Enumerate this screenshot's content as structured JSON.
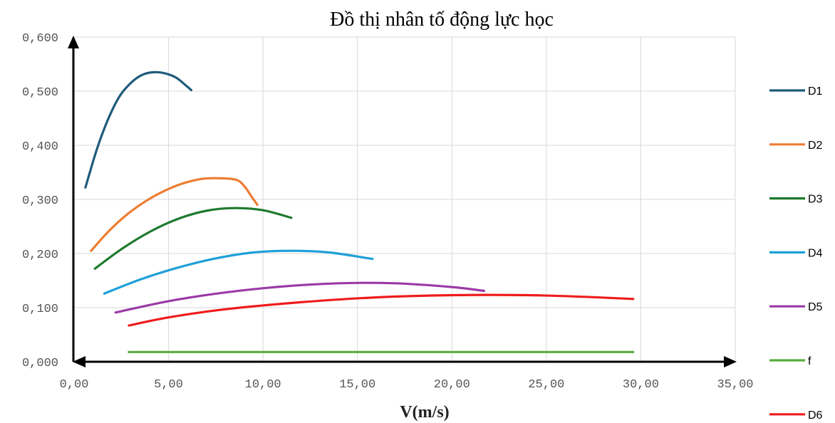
{
  "chart_data": {
    "type": "line",
    "title": "Đồ thị nhân tố động lực học",
    "xlabel": "V(m/s)",
    "ylabel": "",
    "xlim": [
      0,
      35
    ],
    "ylim": [
      0,
      0.6
    ],
    "x_ticks": [
      "0,00",
      "5,00",
      "10,00",
      "15,00",
      "20,00",
      "25,00",
      "30,00",
      "35,00"
    ],
    "y_ticks": [
      "0,000",
      "0,100",
      "0,200",
      "0,300",
      "0,400",
      "0,500",
      "0,600"
    ],
    "grid": true,
    "legend_position": "right",
    "series": [
      {
        "name": "D1",
        "color": "#1f5b7a",
        "x": [
          0.6,
          1.2,
          1.8,
          2.4,
          3.0,
          3.6,
          4.2,
          4.8,
          5.4,
          6.0,
          6.2
        ],
        "y": [
          0.322,
          0.392,
          0.448,
          0.49,
          0.515,
          0.53,
          0.535,
          0.533,
          0.525,
          0.508,
          0.502
        ]
      },
      {
        "name": "D2",
        "color": "#ed7d31",
        "x": [
          0.9,
          1.8,
          2.8,
          3.8,
          4.8,
          5.8,
          6.8,
          7.8,
          8.6,
          9.0,
          9.4,
          9.7
        ],
        "y": [
          0.205,
          0.24,
          0.272,
          0.297,
          0.316,
          0.33,
          0.338,
          0.339,
          0.336,
          0.325,
          0.305,
          0.29
        ]
      },
      {
        "name": "D3",
        "color": "#1e7a2e",
        "x": [
          1.1,
          2.5,
          4.0,
          5.5,
          7.0,
          8.5,
          10.0,
          11.5
        ],
        "y": [
          0.172,
          0.208,
          0.24,
          0.264,
          0.279,
          0.284,
          0.28,
          0.266
        ]
      },
      {
        "name": "D4",
        "color": "#1ea0d8",
        "x": [
          1.6,
          3.5,
          5.5,
          7.5,
          9.5,
          11.5,
          13.5,
          15.8
        ],
        "y": [
          0.126,
          0.152,
          0.174,
          0.191,
          0.202,
          0.205,
          0.202,
          0.19
        ]
      },
      {
        "name": "D5",
        "color": "#9b3aa6",
        "x": [
          2.2,
          5.0,
          8.0,
          11.0,
          14.0,
          17.0,
          20.0,
          21.7
        ],
        "y": [
          0.091,
          0.112,
          0.128,
          0.139,
          0.145,
          0.145,
          0.138,
          0.131
        ]
      },
      {
        "name": "f",
        "color": "#5aac3e",
        "x": [
          2.9,
          29.6
        ],
        "y": [
          0.018,
          0.018
        ]
      },
      {
        "name": "D6",
        "color": "#ee1c1c",
        "x": [
          2.9,
          5.0,
          8.0,
          12.0,
          16.0,
          20.0,
          24.0,
          27.0,
          29.6
        ],
        "y": [
          0.067,
          0.082,
          0.097,
          0.11,
          0.119,
          0.123,
          0.123,
          0.12,
          0.116
        ]
      }
    ]
  }
}
